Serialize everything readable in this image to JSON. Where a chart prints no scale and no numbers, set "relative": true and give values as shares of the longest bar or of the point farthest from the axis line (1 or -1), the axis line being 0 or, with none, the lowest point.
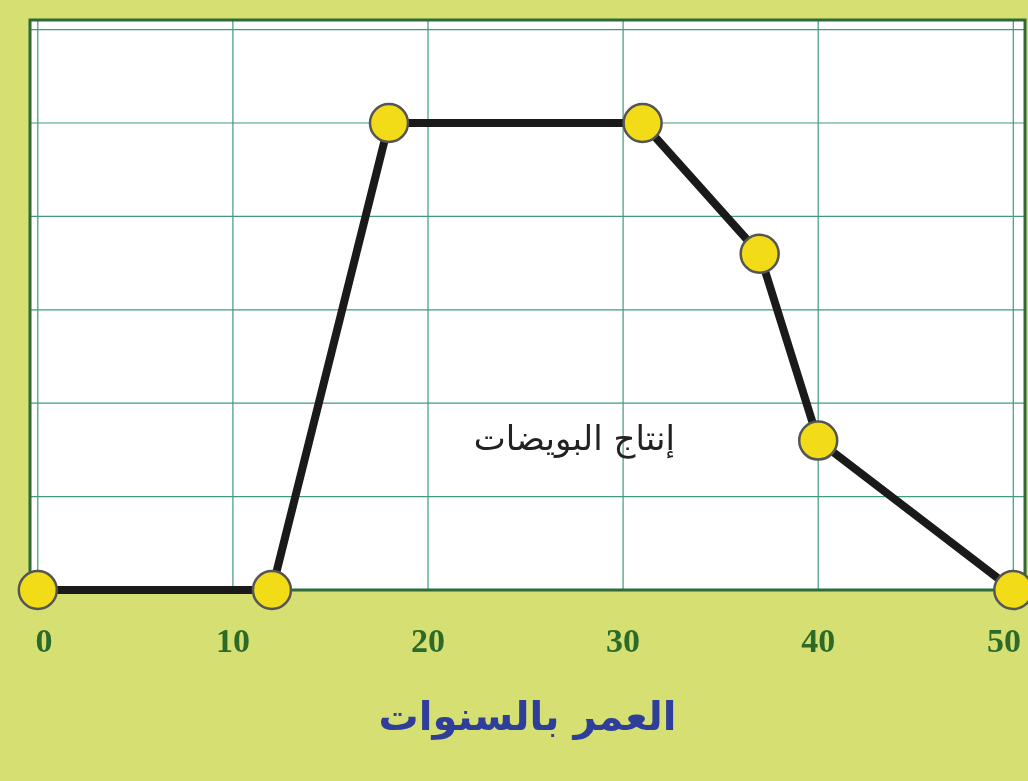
{
  "chart_data": {
    "type": "line",
    "relative": true,
    "xlabel": "العمر بالسنوات",
    "x": [
      0,
      12,
      18,
      31,
      37,
      40,
      50
    ],
    "series": [
      {
        "name": "إنتاج البويضات",
        "color": "#1a1a1a",
        "values": [
          0,
          0,
          1,
          1,
          0.72,
          0.32,
          0
        ]
      }
    ],
    "xlim": [
      -0.4,
      50.6
    ],
    "xticks": [
      0,
      10,
      20,
      30,
      40,
      50
    ],
    "grid": true,
    "marker": "circle",
    "line_style": "solid",
    "legend": false,
    "tick_labels": "x"
  }
}
